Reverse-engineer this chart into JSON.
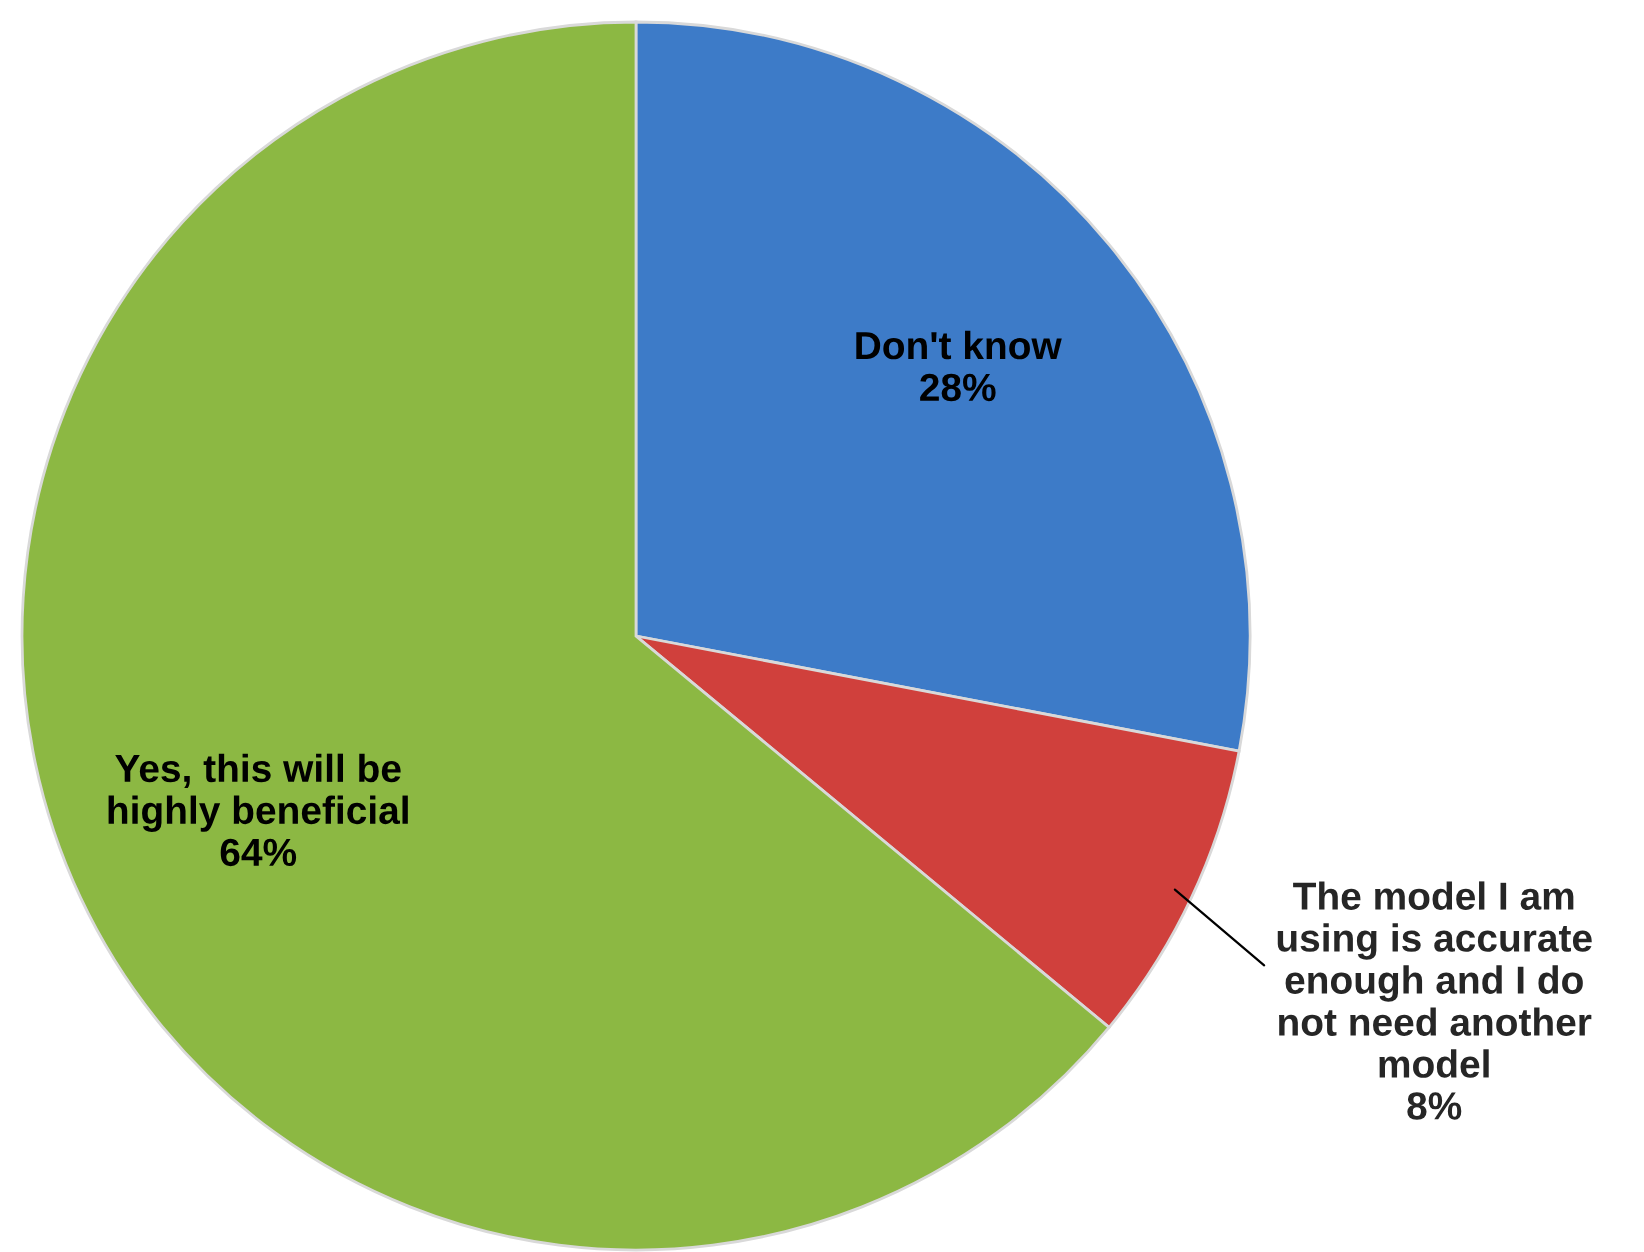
{
  "chart_data": {
    "type": "pie",
    "categories": [
      "Don't know",
      "The model I am\nusing is accurate\nenough and I do\nnot need another\nmodel",
      "Yes, this will be\nhighly beneficial"
    ],
    "values": [
      28,
      8,
      64
    ],
    "value_labels": [
      "28%",
      "8%",
      "64%"
    ],
    "colors": [
      "#3d7bc8",
      "#d0403c",
      "#8cb843"
    ],
    "legend": false
  }
}
